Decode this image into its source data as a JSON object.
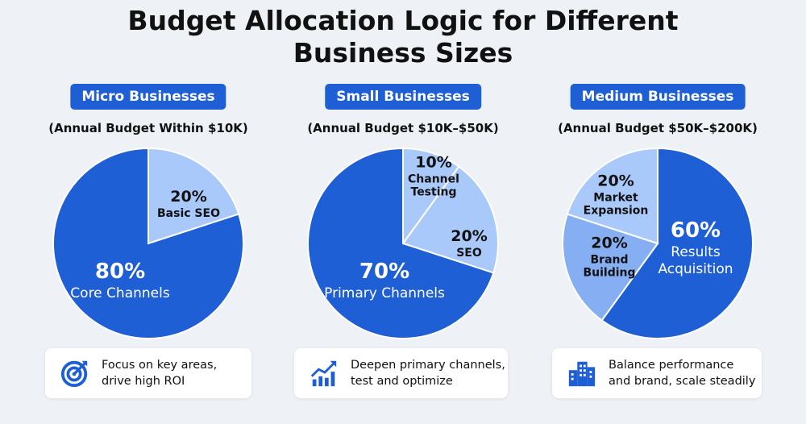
{
  "header": {
    "title_line1": "Budget Allocation Logic for Different",
    "title_line2": "Business Sizes"
  },
  "colors": {
    "primary": "#1f5fd6",
    "light1": "#a9c9fa",
    "light2": "#86aef2"
  },
  "chart_data": [
    {
      "type": "pie",
      "title": "Micro Businesses",
      "subtitle": "(Annual Budget Within $10K)",
      "slices": [
        {
          "pct": "20%",
          "label": [
            "Basic SEO"
          ],
          "value": 20,
          "color": "#a9c9fa"
        },
        {
          "pct": "80%",
          "label": [
            "Core Channels"
          ],
          "value": 80,
          "color": "#1f5fd6"
        }
      ],
      "note": [
        "Focus on key areas,",
        "drive high ROI"
      ],
      "icon": "target-icon"
    },
    {
      "type": "pie",
      "title": "Small Businesses",
      "subtitle": "(Annual Budget $10K–$50K)",
      "slices": [
        {
          "pct": "10%",
          "label": [
            "Channel",
            "Testing"
          ],
          "value": 10,
          "color": "#a9c9fa"
        },
        {
          "pct": "20%",
          "label": [
            "SEO"
          ],
          "value": 20,
          "color": "#a9c9fa"
        },
        {
          "pct": "70%",
          "label": [
            "Primary Channels"
          ],
          "value": 70,
          "color": "#1f5fd6"
        }
      ],
      "note": [
        "Deepen primary channels,",
        "test and optimize"
      ],
      "icon": "growth-chart-icon"
    },
    {
      "type": "pie",
      "title": "Medium Businesses",
      "subtitle": "(Annual Budget $50K–$200K)",
      "slices": [
        {
          "pct": "60%",
          "label": [
            "Results",
            "Acquisition"
          ],
          "value": 60,
          "color": "#1f5fd6"
        },
        {
          "pct": "20%",
          "label": [
            "Brand",
            "Building"
          ],
          "value": 20,
          "color": "#86aef2"
        },
        {
          "pct": "20%",
          "label": [
            "Market",
            "Expansion"
          ],
          "value": 20,
          "color": "#a9c9fa"
        }
      ],
      "note": [
        "Balance performance",
        "and brand, scale steadily"
      ],
      "icon": "buildings-icon"
    }
  ]
}
